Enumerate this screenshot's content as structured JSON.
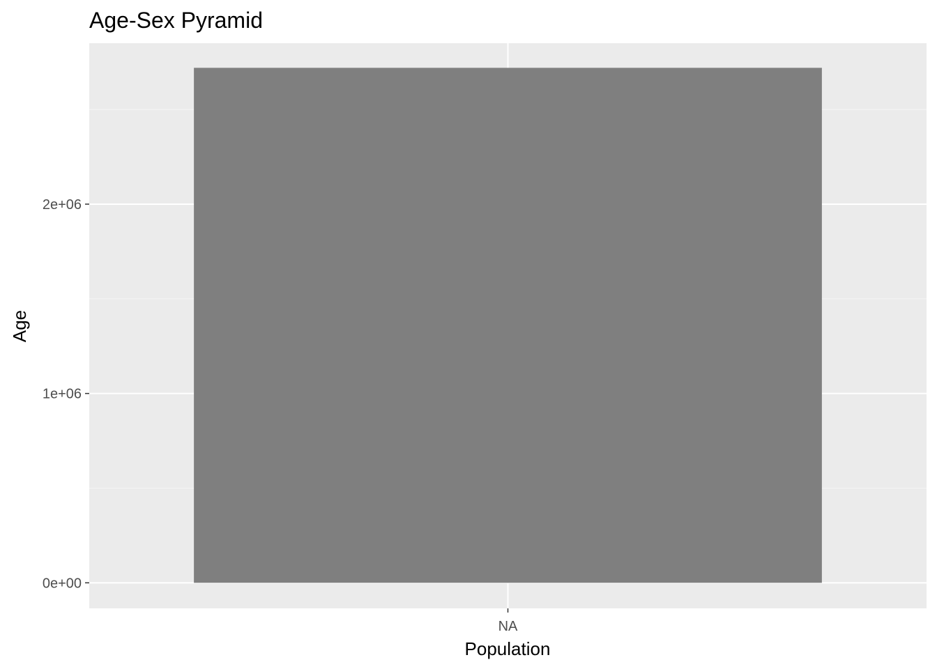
{
  "chart_data": {
    "type": "bar",
    "title": "Age-Sex Pyramid",
    "xlabel": "Population",
    "ylabel": "Age",
    "categories": [
      "NA"
    ],
    "values": [
      2720000
    ],
    "ylim": [
      -135000,
      2850000
    ],
    "y_ticks": [
      0,
      1000000,
      2000000
    ],
    "y_tick_labels": [
      "0e+00",
      "1e+06",
      "2e+06"
    ],
    "grid": true,
    "legend": "none",
    "colors": {
      "bar": "#7f7f7f",
      "panel_background": "#ebebeb",
      "grid_major": "#ffffff",
      "grid_minor": "#f5f5f5",
      "tick_text": "#4d4d4d",
      "tick_mark": "#333333"
    }
  }
}
